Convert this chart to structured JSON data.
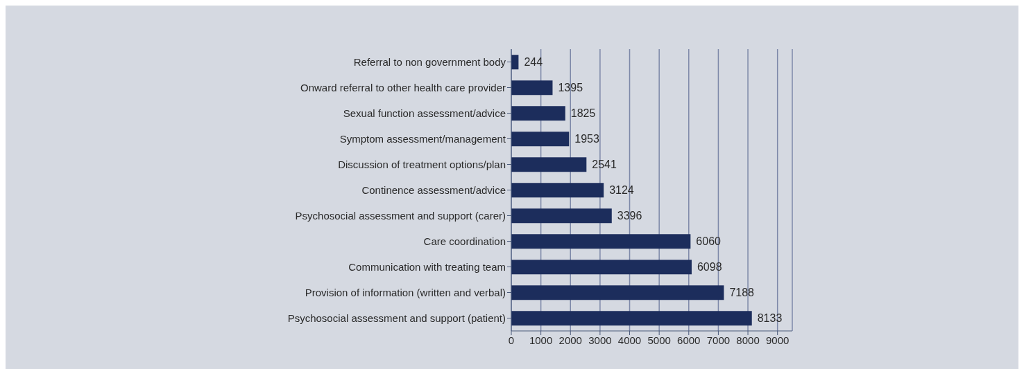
{
  "chart_data": {
    "type": "bar",
    "orientation": "horizontal",
    "categories": [
      "Referral to non government body",
      "Onward referral to other health care provider",
      "Sexual function assessment/advice",
      "Symptom assessment/management",
      "Discussion of treatment options/plan",
      "Continence assessment/advice",
      "Psychosocial assessment and support (carer)",
      "Care coordination",
      "Communication with treating team",
      "Provision of information (written and verbal)",
      "Psychosocial assessment and support (patient)"
    ],
    "values": [
      244,
      1395,
      1825,
      1953,
      2541,
      3124,
      3396,
      6060,
      6098,
      7188,
      8133
    ],
    "color": "#1c2d5c",
    "xlim": [
      0,
      9500
    ],
    "xticks": [
      0,
      1000,
      2000,
      3000,
      4000,
      5000,
      6000,
      7000,
      8000,
      9000
    ],
    "grid": "x",
    "data_labels": true
  }
}
